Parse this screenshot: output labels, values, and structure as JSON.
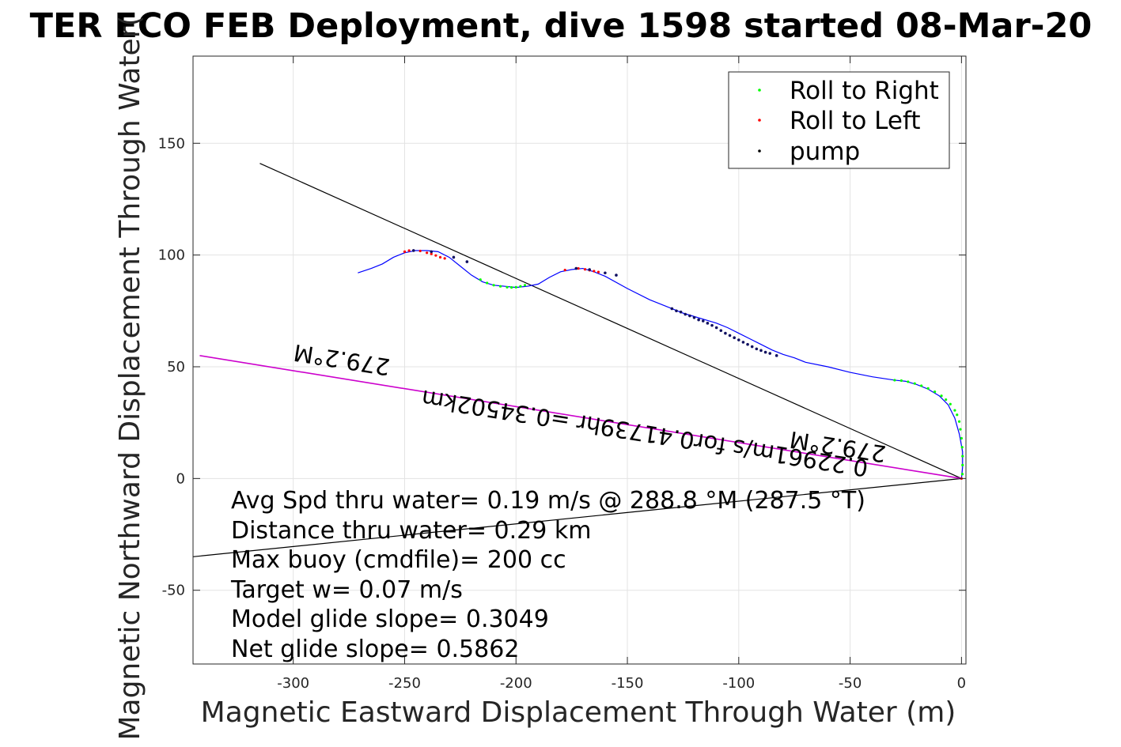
{
  "chart_data": {
    "type": "line",
    "title": "TER ECO FEB Deployment, dive 1598 started 08-Mar-20",
    "xlabel": "Magnetic Eastward Displacement Through Water (m)",
    "ylabel": "Magnetic Northward Displacement Through Water(",
    "xlim": [
      -345,
      2
    ],
    "ylim": [
      -83,
      189
    ],
    "xticks": [
      -300,
      -250,
      -200,
      -150,
      -100,
      -50,
      0
    ],
    "yticks": [
      -50,
      0,
      50,
      100,
      150
    ],
    "xtick_labels": [
      "-300",
      "-250",
      "-200",
      "-150",
      "-100",
      "-50",
      "0"
    ],
    "ytick_labels": [
      "-50",
      "0",
      "50",
      "100",
      "150"
    ],
    "grid": true,
    "legend_position": "top-right",
    "legend": [
      {
        "label": "Roll to Right",
        "color": "#00ff00"
      },
      {
        "label": "Roll to Left",
        "color": "#ff0000"
      },
      {
        "label": "pump",
        "color": "#000000"
      }
    ],
    "track": {
      "color": "#0000ff",
      "x": [
        0,
        0.5,
        0.5,
        -1,
        -3,
        -6,
        -10,
        -15,
        -20,
        -25,
        -30,
        -40,
        -50,
        -60,
        -70,
        -75,
        -80,
        -85,
        -90,
        -95,
        -100,
        -105,
        -110,
        -115,
        -120,
        -125,
        -130,
        -140,
        -150,
        -160,
        -165,
        -170,
        -175,
        -180,
        -185,
        -190,
        -195,
        -200,
        -205,
        -210,
        -215,
        -220,
        -225,
        -230,
        -235,
        -240,
        -245,
        -250,
        -255,
        -260,
        -265,
        -271
      ],
      "y": [
        0,
        5,
        12,
        20,
        27,
        33,
        37,
        40,
        42,
        43.5,
        44,
        45.5,
        47.5,
        50,
        52,
        54,
        55.5,
        57.5,
        60,
        62.5,
        65,
        67.5,
        69.5,
        71,
        72.5,
        74,
        76,
        80,
        85,
        90.5,
        92.5,
        94,
        93.5,
        92.5,
        90,
        87,
        86,
        85.5,
        86,
        86.5,
        88,
        91,
        95,
        99,
        101.5,
        102,
        102,
        101,
        99,
        96,
        94,
        92
      ]
    },
    "roll_right": {
      "x": [
        -30,
        -27,
        -24,
        -21,
        -18,
        -15,
        -12,
        -9,
        -7,
        -5,
        -3,
        -2,
        -1,
        -0.5,
        0,
        0.3,
        0.5,
        0.5,
        0.4,
        -216,
        -213,
        -210,
        -207,
        -204,
        -202,
        -200,
        -198,
        -196
      ],
      "y": [
        44,
        43.8,
        43.3,
        42.5,
        41.5,
        40.3,
        38.8,
        37,
        35.3,
        33.3,
        30.5,
        28.5,
        25.5,
        22,
        18,
        14,
        10,
        6,
        2,
        89,
        87.5,
        86.5,
        86,
        85.6,
        85.5,
        85.6,
        86,
        86.5
      ]
    },
    "roll_left": {
      "x": [
        -250,
        -248,
        -246,
        -243,
        -240,
        -238,
        -236,
        -234,
        -232,
        -178,
        -172,
        -169,
        -167,
        -165,
        -163,
        0
      ],
      "y": [
        101.5,
        102,
        102,
        101.8,
        101,
        100.5,
        99.8,
        99,
        98.5,
        93.3,
        94,
        93.6,
        93.2,
        92.8,
        92.4,
        0
      ]
    },
    "pump": {
      "x": [
        -246,
        -238,
        -228,
        -222,
        -173,
        -167,
        -160,
        -155,
        -130,
        -128,
        -126,
        -124,
        -122,
        -120,
        -118,
        -116,
        -114,
        -112,
        -110,
        -108,
        -106,
        -104,
        -102,
        -100,
        -98,
        -96,
        -94,
        -92,
        -90,
        -88,
        -86,
        -83
      ],
      "y": [
        102,
        101.5,
        99,
        97,
        94,
        93.5,
        92,
        91,
        76,
        75,
        74.5,
        73.5,
        72.8,
        72,
        71,
        70.5,
        69.5,
        68.5,
        67.5,
        66.2,
        65,
        64,
        63,
        62,
        61,
        60,
        59,
        58,
        57.3,
        56.5,
        56,
        55
      ]
    },
    "heading_lines": [
      {
        "name": "current-line",
        "color": "#000000",
        "x": [
          0,
          -315
        ],
        "y": [
          0,
          141
        ]
      },
      {
        "name": "net-line",
        "color": "#000000",
        "x": [
          0,
          -345
        ],
        "y": [
          0,
          -35
        ]
      },
      {
        "name": "heading-line",
        "color": "#cc00cc",
        "x": [
          0,
          -342
        ],
        "y": [
          0,
          55
        ]
      }
    ],
    "annotations": {
      "heading_top": "279.2°M",
      "heading_right": "279.2°M",
      "speed": "0.22961m/s for0.41739hr =0.34502km"
    },
    "stats": [
      "Avg Spd thru water=  0.19 m/s @ 288.8 °M (287.5 °T)",
      "Distance thru water=  0.29 km",
      "Max buoy (cmdfile)= 200 cc",
      "Target w= 0.07 m/s",
      "Model glide slope= 0.3049",
      "Net glide slope= 0.5862"
    ]
  }
}
